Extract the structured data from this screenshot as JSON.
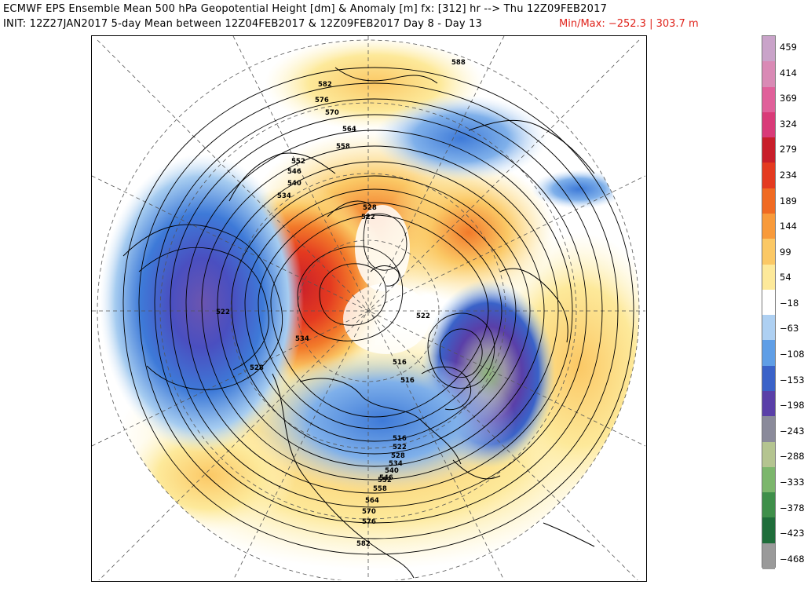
{
  "header": {
    "title_line1": "ECMWF EPS Ensemble Mean 500 hPa Geopotential Height [dm] & Anomaly [m] fx: [312] hr --> Thu 12Z09FEB2017",
    "title_line2": "INIT: 12Z27JAN2017 5-day Mean between 12Z04FEB2017 & 12Z09FEB2017   Day 8 - Day 13",
    "minmax": "Min/Max: −252.3 | 303.7 m"
  },
  "colorbar": {
    "labels": [
      "459",
      "414",
      "369",
      "324",
      "279",
      "234",
      "189",
      "144",
      "99",
      "54",
      "−18",
      "−63",
      "−108",
      "−153",
      "−198",
      "−243",
      "−288",
      "−333",
      "−378",
      "−423",
      "−468"
    ],
    "colors": [
      "#c9a3c9",
      "#d98ab5",
      "#e0609a",
      "#d93a78",
      "#c81e2a",
      "#e43a20",
      "#f06a22",
      "#f89a3a",
      "#fbc865",
      "#fde99a",
      "#ffffff",
      "#aed0f2",
      "#5f9ee6",
      "#3a62c8",
      "#5a3fa8",
      "#8a8a9a",
      "#b4c490",
      "#7cb66c",
      "#3f8f4a",
      "#1f6d3a",
      "#9a9a9a"
    ]
  },
  "map": {
    "contour_labels": [
      "588",
      "582",
      "576",
      "570",
      "564",
      "558",
      "552",
      "546",
      "540",
      "534",
      "528",
      "522",
      "522",
      "528",
      "534",
      "522",
      "516",
      "516",
      "516",
      "522",
      "528",
      "534",
      "540",
      "546",
      "552",
      "558",
      "564",
      "570",
      "576",
      "582"
    ]
  }
}
